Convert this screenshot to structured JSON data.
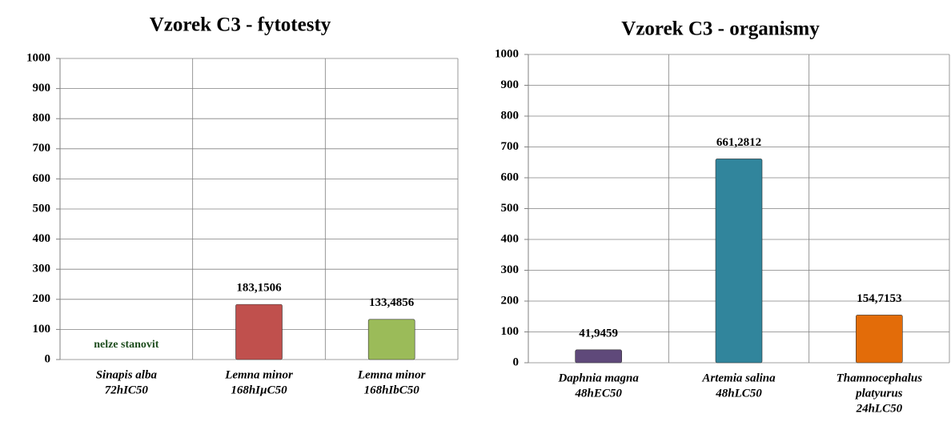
{
  "chart_data": [
    {
      "type": "bar",
      "title": "Vzorek C3 - fytotesty",
      "categories": [
        [
          "Sinapis alba",
          "72hIC50"
        ],
        [
          "Lemna minor",
          "168hIµC50"
        ],
        [
          "Lemna minor",
          "168hIbC50"
        ]
      ],
      "values": [
        null,
        183.1506,
        133.4856
      ],
      "value_labels": [
        null,
        "183,1506",
        "133,4856"
      ],
      "colors": [
        null,
        "#c0504d",
        "#9bbb59"
      ],
      "annotation": "nelze stanovit",
      "ylim": [
        0,
        1000
      ],
      "yticks": [
        0,
        100,
        200,
        300,
        400,
        500,
        600,
        700,
        800,
        900,
        1000
      ],
      "grid": true
    },
    {
      "type": "bar",
      "title": "Vzorek C3 - organismy",
      "categories": [
        [
          "Daphnia magna",
          "48hEC50"
        ],
        [
          "Artemia salina",
          "48hLC50"
        ],
        [
          "Thamnocephalus",
          "platyurus",
          "24hLC50"
        ]
      ],
      "values": [
        41.9459,
        661.2812,
        154.7153
      ],
      "value_labels": [
        "41,9459",
        "661,2812",
        "154,7153"
      ],
      "colors": [
        "#5f497a",
        "#31859c",
        "#e36c09"
      ],
      "ylim": [
        0,
        1000
      ],
      "yticks": [
        0,
        100,
        200,
        300,
        400,
        500,
        600,
        700,
        800,
        900,
        1000
      ],
      "grid": true
    }
  ]
}
